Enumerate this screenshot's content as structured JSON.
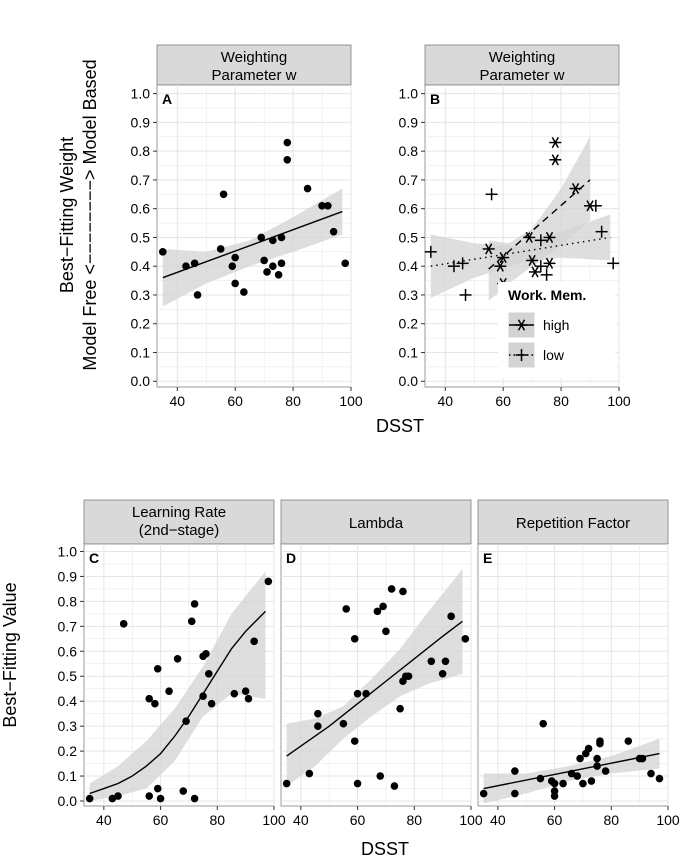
{
  "figure": {
    "top_ylabel_line1": "Best−Fitting Weight",
    "top_ylabel_line2": "Model Free <−−−−−−−−> Model Based",
    "top_xlabel": "DSST",
    "bottom_ylabel": "Best−Fitting Value",
    "bottom_xlabel": "DSST"
  },
  "legend": {
    "title": "Work. Mem.",
    "items": [
      {
        "label": "high",
        "marker": "asterisk",
        "line": "dashed"
      },
      {
        "label": "low",
        "marker": "plus",
        "line": "dotted"
      }
    ]
  },
  "colors": {
    "strip": "#d9d9d9",
    "panel_bg": "#ffffff",
    "grid": "#e5e5e5",
    "band": "#d3d3d3",
    "ink": "#000000"
  },
  "chart_data": [
    {
      "id": "A",
      "type": "scatter",
      "strip": [
        "Weighting",
        "Parameter w"
      ],
      "xlim": [
        33,
        100
      ],
      "ylim": [
        -0.02,
        1.03
      ],
      "xticks": [
        40,
        60,
        80,
        100
      ],
      "yticks": [
        0.0,
        0.1,
        0.2,
        0.3,
        0.4,
        0.5,
        0.6,
        0.7,
        0.8,
        0.9,
        1.0
      ],
      "points": [
        [
          35,
          0.45
        ],
        [
          43,
          0.4
        ],
        [
          46,
          0.41
        ],
        [
          47,
          0.3
        ],
        [
          56,
          0.65
        ],
        [
          55,
          0.46
        ],
        [
          59,
          0.4
        ],
        [
          60,
          0.43
        ],
        [
          60,
          0.34
        ],
        [
          63,
          0.31
        ],
        [
          69,
          0.5
        ],
        [
          70,
          0.42
        ],
        [
          71,
          0.38
        ],
        [
          73,
          0.49
        ],
        [
          73,
          0.4
        ],
        [
          75,
          0.37
        ],
        [
          76,
          0.41
        ],
        [
          76,
          0.5
        ],
        [
          78,
          0.83
        ],
        [
          78,
          0.77
        ],
        [
          85,
          0.67
        ],
        [
          90,
          0.61
        ],
        [
          92,
          0.61
        ],
        [
          94,
          0.52
        ],
        [
          98,
          0.41
        ]
      ],
      "fit": {
        "x": [
          35,
          97
        ],
        "y": [
          0.36,
          0.59
        ]
      },
      "band": {
        "x": [
          35,
          50,
          65,
          80,
          97
        ],
        "lo": [
          0.26,
          0.34,
          0.4,
          0.45,
          0.51
        ],
        "hi": [
          0.46,
          0.45,
          0.49,
          0.57,
          0.67
        ]
      }
    },
    {
      "id": "B",
      "type": "scatter",
      "strip": [
        "Weighting",
        "Parameter w"
      ],
      "xlim": [
        33,
        100
      ],
      "ylim": [
        -0.02,
        1.03
      ],
      "xticks": [
        40,
        60,
        80,
        100
      ],
      "yticks": [
        0.0,
        0.1,
        0.2,
        0.3,
        0.4,
        0.5,
        0.6,
        0.7,
        0.8,
        0.9,
        1.0
      ],
      "series": [
        {
          "name": "high",
          "marker": "asterisk",
          "line": "dashed",
          "points": [
            [
              55,
              0.46
            ],
            [
              59,
              0.4
            ],
            [
              60,
              0.43
            ],
            [
              60,
              0.34
            ],
            [
              69,
              0.5
            ],
            [
              70,
              0.42
            ],
            [
              71,
              0.38
            ],
            [
              76,
              0.41
            ],
            [
              76,
              0.5
            ],
            [
              78,
              0.83
            ],
            [
              78,
              0.77
            ],
            [
              85,
              0.67
            ],
            [
              90,
              0.61
            ]
          ],
          "fit": {
            "x": [
              55,
              90
            ],
            "y": [
              0.39,
              0.7
            ]
          },
          "band": {
            "x": [
              55,
              62,
              70,
              80,
              90
            ],
            "lo": [
              0.28,
              0.34,
              0.4,
              0.47,
              0.56
            ],
            "hi": [
              0.49,
              0.48,
              0.53,
              0.67,
              0.85
            ]
          }
        },
        {
          "name": "low",
          "marker": "plus",
          "line": "dotted",
          "points": [
            [
              35,
              0.45
            ],
            [
              43,
              0.4
            ],
            [
              46,
              0.41
            ],
            [
              47,
              0.3
            ],
            [
              56,
              0.65
            ],
            [
              63,
              0.31
            ],
            [
              73,
              0.49
            ],
            [
              73,
              0.4
            ],
            [
              75,
              0.37
            ],
            [
              92,
              0.61
            ],
            [
              94,
              0.52
            ],
            [
              98,
              0.41
            ]
          ],
          "fit": {
            "x": [
              35,
              97
            ],
            "y": [
              0.4,
              0.5
            ]
          },
          "band": {
            "x": [
              35,
              50,
              65,
              80,
              97
            ],
            "lo": [
              0.29,
              0.36,
              0.41,
              0.43,
              0.42
            ],
            "hi": [
              0.51,
              0.48,
              0.47,
              0.52,
              0.58
            ]
          }
        }
      ]
    },
    {
      "id": "C",
      "type": "scatter",
      "strip": [
        "Learning Rate",
        "(2nd−stage)"
      ],
      "xlim": [
        33,
        100
      ],
      "ylim": [
        -0.02,
        1.03
      ],
      "xticks": [
        40,
        60,
        80,
        100
      ],
      "yticks": [
        0.0,
        0.1,
        0.2,
        0.3,
        0.4,
        0.5,
        0.6,
        0.7,
        0.8,
        0.9,
        1.0
      ],
      "points": [
        [
          35,
          0.01
        ],
        [
          43,
          0.01
        ],
        [
          45,
          0.02
        ],
        [
          47,
          0.71
        ],
        [
          56,
          0.41
        ],
        [
          56,
          0.02
        ],
        [
          58,
          0.39
        ],
        [
          59,
          0.53
        ],
        [
          59,
          0.05
        ],
        [
          60,
          0.01
        ],
        [
          63,
          0.44
        ],
        [
          66,
          0.57
        ],
        [
          68,
          0.04
        ],
        [
          69,
          0.32
        ],
        [
          71,
          0.72
        ],
        [
          72,
          0.79
        ],
        [
          72,
          0.01
        ],
        [
          75,
          0.58
        ],
        [
          75,
          0.42
        ],
        [
          76,
          0.59
        ],
        [
          77,
          0.51
        ],
        [
          78,
          0.39
        ],
        [
          86,
          0.43
        ],
        [
          90,
          0.44
        ],
        [
          91,
          0.41
        ],
        [
          93,
          0.64
        ],
        [
          98,
          0.88
        ]
      ],
      "fit": {
        "x": [
          35,
          40,
          45,
          50,
          55,
          60,
          65,
          70,
          75,
          80,
          85,
          90,
          97
        ],
        "y": [
          0.03,
          0.05,
          0.07,
          0.1,
          0.14,
          0.19,
          0.26,
          0.34,
          0.43,
          0.52,
          0.61,
          0.68,
          0.76
        ]
      },
      "band": {
        "x": [
          35,
          45,
          55,
          65,
          75,
          85,
          97
        ],
        "lo": [
          0.0,
          0.02,
          0.05,
          0.16,
          0.34,
          0.43,
          0.41
        ],
        "hi": [
          0.07,
          0.14,
          0.24,
          0.37,
          0.54,
          0.75,
          0.92
        ]
      }
    },
    {
      "id": "D",
      "type": "scatter",
      "strip": [
        "Lambda",
        ""
      ],
      "xlim": [
        33,
        100
      ],
      "ylim": [
        -0.02,
        1.03
      ],
      "xticks": [
        40,
        60,
        80,
        100
      ],
      "yticks": [
        0.0,
        0.1,
        0.2,
        0.3,
        0.4,
        0.5,
        0.6,
        0.7,
        0.8,
        0.9,
        1.0
      ],
      "points": [
        [
          35,
          0.07
        ],
        [
          43,
          0.11
        ],
        [
          46,
          0.35
        ],
        [
          46,
          0.3
        ],
        [
          55,
          0.31
        ],
        [
          56,
          0.77
        ],
        [
          59,
          0.65
        ],
        [
          59,
          0.24
        ],
        [
          60,
          0.43
        ],
        [
          60,
          0.07
        ],
        [
          63,
          0.43
        ],
        [
          67,
          0.76
        ],
        [
          68,
          0.1
        ],
        [
          69,
          0.78
        ],
        [
          70,
          0.68
        ],
        [
          72,
          0.85
        ],
        [
          73,
          0.06
        ],
        [
          75,
          0.37
        ],
        [
          76,
          0.84
        ],
        [
          76,
          0.48
        ],
        [
          77,
          0.5
        ],
        [
          78,
          0.5
        ],
        [
          86,
          0.56
        ],
        [
          90,
          0.51
        ],
        [
          91,
          0.56
        ],
        [
          93,
          0.74
        ],
        [
          98,
          0.65
        ]
      ],
      "fit": {
        "x": [
          35,
          40,
          50,
          60,
          70,
          80,
          90,
          97
        ],
        "y": [
          0.18,
          0.22,
          0.3,
          0.39,
          0.48,
          0.57,
          0.66,
          0.72
        ]
      },
      "band": {
        "x": [
          35,
          45,
          55,
          65,
          75,
          85,
          97
        ],
        "lo": [
          0.06,
          0.14,
          0.25,
          0.34,
          0.42,
          0.47,
          0.51
        ],
        "hi": [
          0.31,
          0.33,
          0.38,
          0.49,
          0.61,
          0.76,
          0.93
        ]
      }
    },
    {
      "id": "E",
      "type": "scatter",
      "strip": [
        "Repetition Factor",
        ""
      ],
      "xlim": [
        33,
        100
      ],
      "ylim": [
        -0.02,
        1.03
      ],
      "xticks": [
        40,
        60,
        80,
        100
      ],
      "yticks": [
        0.0,
        0.1,
        0.2,
        0.3,
        0.4,
        0.5,
        0.6,
        0.7,
        0.8,
        0.9,
        1.0
      ],
      "points": [
        [
          35,
          0.03
        ],
        [
          46,
          0.12
        ],
        [
          46,
          0.03
        ],
        [
          55,
          0.09
        ],
        [
          56,
          0.31
        ],
        [
          59,
          0.08
        ],
        [
          60,
          0.07
        ],
        [
          60,
          0.04
        ],
        [
          60,
          0.02
        ],
        [
          63,
          0.07
        ],
        [
          66,
          0.11
        ],
        [
          68,
          0.1
        ],
        [
          69,
          0.17
        ],
        [
          70,
          0.07
        ],
        [
          71,
          0.19
        ],
        [
          72,
          0.21
        ],
        [
          73,
          0.08
        ],
        [
          75,
          0.14
        ],
        [
          75,
          0.17
        ],
        [
          76,
          0.24
        ],
        [
          76,
          0.23
        ],
        [
          78,
          0.12
        ],
        [
          86,
          0.24
        ],
        [
          90,
          0.17
        ],
        [
          91,
          0.17
        ],
        [
          94,
          0.11
        ],
        [
          97,
          0.09
        ]
      ],
      "fit": {
        "x": [
          35,
          97
        ],
        "y": [
          0.05,
          0.19
        ]
      },
      "band": {
        "x": [
          35,
          50,
          65,
          80,
          97
        ],
        "lo": [
          -0.01,
          0.03,
          0.08,
          0.11,
          0.13
        ],
        "hi": [
          0.11,
          0.11,
          0.14,
          0.18,
          0.25
        ]
      }
    }
  ]
}
